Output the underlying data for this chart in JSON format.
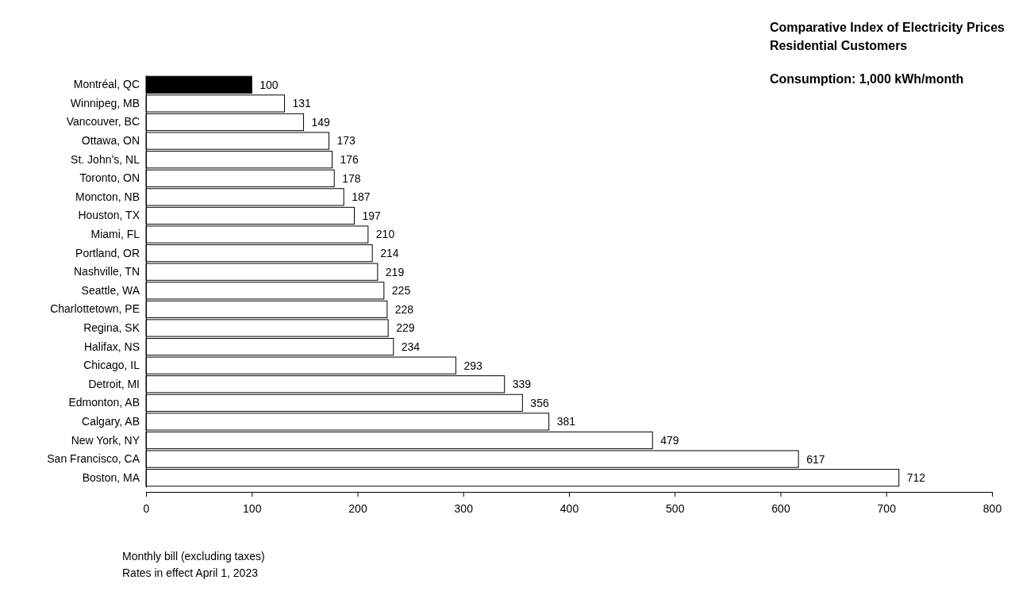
{
  "chart_data": {
    "type": "bar",
    "orientation": "horizontal",
    "title": "Comparative Index of Electricity Prices",
    "subtitle": "Residential Customers",
    "categories": [
      "Montréal, QC",
      "Winnipeg, MB",
      "Vancouver, BC",
      "Ottawa, ON",
      "St. John’s, NL",
      "Toronto, ON",
      "Moncton, NB",
      "Houston, TX",
      "Miami, FL",
      "Portland, OR",
      "Nashville, TN",
      "Seattle, WA",
      "Charlottetown, PE",
      "Regina, SK",
      "Halifax, NS",
      "Chicago, IL",
      "Detroit, MI",
      "Edmonton, AB",
      "Calgary, AB",
      "New York, NY",
      "San Francisco, CA",
      "Boston, MA"
    ],
    "values": [
      100,
      131,
      149,
      173,
      176,
      178,
      187,
      197,
      210,
      214,
      219,
      225,
      228,
      229,
      234,
      293,
      339,
      356,
      381,
      479,
      617,
      712
    ],
    "colors": [
      "#000000",
      "#ffffff",
      "#ffffff",
      "#ffffff",
      "#ffffff",
      "#ffffff",
      "#ffffff",
      "#ffffff",
      "#ffffff",
      "#ffffff",
      "#ffffff",
      "#ffffff",
      "#ffffff",
      "#ffffff",
      "#ffffff",
      "#ffffff",
      "#ffffff",
      "#ffffff",
      "#ffffff",
      "#ffffff",
      "#ffffff",
      "#ffffff"
    ],
    "xlim": [
      0,
      800
    ],
    "xticks": [
      0,
      100,
      200,
      300,
      400,
      500,
      600,
      700,
      800
    ],
    "data_labels": true,
    "grid": false,
    "annotations": [
      "Consumption: 1,000 kWh/month",
      "Monthly bill (excluding taxes)",
      "Rates in effect April 1, 2023"
    ]
  }
}
